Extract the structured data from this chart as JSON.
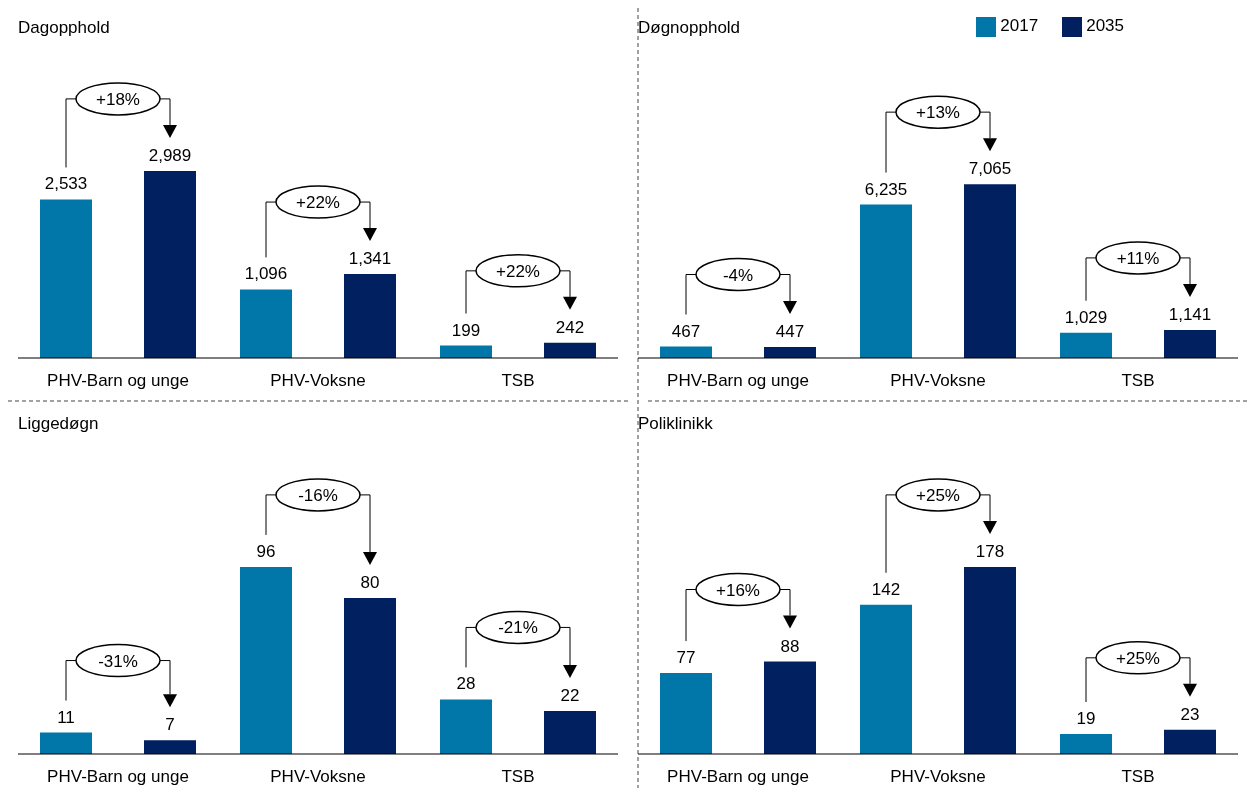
{
  "chart_data": [
    {
      "type": "bar",
      "title": "Dagopphold",
      "categories": [
        "PHV-Barn og unge",
        "PHV-Voksne",
        "TSB"
      ],
      "series": [
        {
          "color": "#0077a8",
          "values": [
            2533,
            1096,
            199
          ],
          "value_labels": [
            "2,533",
            "1,096",
            "199"
          ]
        },
        {
          "color": "#002060",
          "values": [
            2989,
            1341,
            242
          ],
          "value_labels": [
            "2,989",
            "1,341",
            "242"
          ]
        }
      ],
      "annotations": [
        "+18%",
        "+22%",
        "+22%"
      ]
    },
    {
      "type": "bar",
      "title": "Døgnopphold",
      "categories": [
        "PHV-Barn og unge",
        "PHV-Voksne",
        "TSB"
      ],
      "series": [
        {
          "name": "2017",
          "color": "#0077a8",
          "values": [
            467,
            6235,
            1029
          ],
          "value_labels": [
            "467",
            "6,235",
            "1,029"
          ]
        },
        {
          "name": "2035",
          "color": "#002060",
          "values": [
            447,
            7065,
            1141
          ],
          "value_labels": [
            "447",
            "7,065",
            "1,141"
          ]
        }
      ],
      "legend": "top right",
      "annotations": [
        "-4%",
        "+13%",
        "+11%"
      ]
    },
    {
      "type": "bar",
      "title": "Liggedøgn",
      "categories": [
        "PHV-Barn og unge",
        "PHV-Voksne",
        "TSB"
      ],
      "series": [
        {
          "color": "#0077a8",
          "values": [
            11,
            96,
            28
          ]
        },
        {
          "color": "#002060",
          "values": [
            7,
            80,
            22
          ]
        }
      ],
      "data_labels": true,
      "annotations": [
        "-31%",
        "-16%",
        "-21%"
      ]
    },
    {
      "type": "bar",
      "title": "Poliklinikk",
      "categories": [
        "PHV-Barn og unge",
        "PHV-Voksne",
        "TSB"
      ],
      "series": [
        {
          "color": "#0077a8",
          "values": [
            77,
            142,
            19
          ]
        },
        {
          "color": "#002060",
          "values": [
            88,
            178,
            23
          ]
        }
      ],
      "data_labels": true,
      "annotations": [
        "+16%",
        "+25%",
        "+25%"
      ]
    }
  ]
}
